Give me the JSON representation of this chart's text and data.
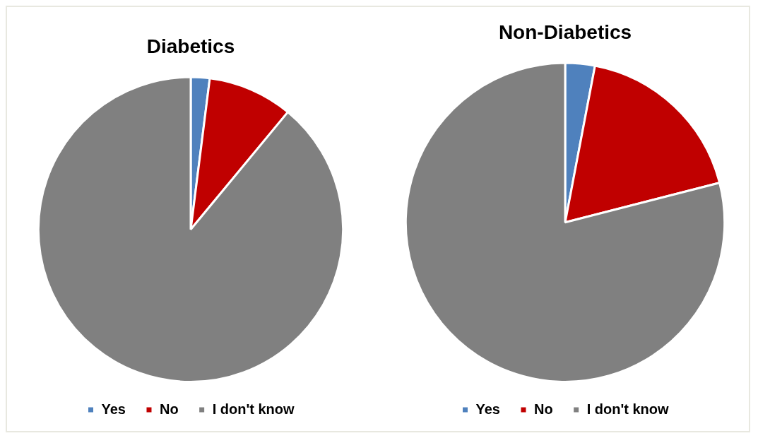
{
  "chart_data": [
    {
      "type": "pie",
      "title": "Diabetics",
      "categories": [
        "Yes",
        "No",
        "I don't know"
      ],
      "values": [
        2,
        9,
        89
      ],
      "colors": [
        "#4f81bd",
        "#c00000",
        "#808080"
      ],
      "legend": "bottom"
    },
    {
      "type": "pie",
      "title": "Non-Diabetics",
      "categories": [
        "Yes",
        "No",
        "I don't know"
      ],
      "values": [
        3,
        18,
        79
      ],
      "colors": [
        "#4f81bd",
        "#c00000",
        "#808080"
      ],
      "legend": "bottom"
    }
  ]
}
